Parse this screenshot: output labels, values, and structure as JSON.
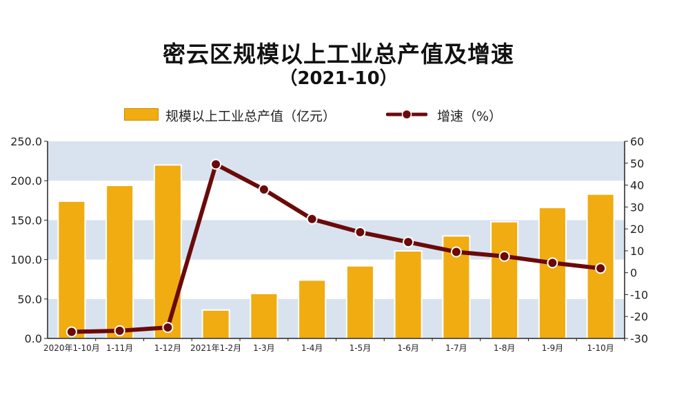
{
  "title": "密云区规模以上工业总产值及增速",
  "subtitle": "（2021-10）",
  "legend": {
    "bar_label": "规模以上工业总产值（亿元）",
    "line_label": "增速（%）"
  },
  "colors": {
    "bar": "#f0ac10",
    "bar_stroke": "#d79600",
    "line": "#6b0a0a",
    "band": "#d8e3ef"
  },
  "chart_data": {
    "type": "bar",
    "title": "密云区规模以上工业总产值及增速",
    "categories": [
      "2020年1-10月",
      "1-11月",
      "1-12月",
      "2021年1-2月",
      "1-3月",
      "1-4月",
      "1-5月",
      "1-6月",
      "1-7月",
      "1-8月",
      "1-9月",
      "1-10月"
    ],
    "series": [
      {
        "name": "规模以上工业总产值（亿元）",
        "type": "bar",
        "axis": "left",
        "values": [
          174,
          194,
          220,
          36,
          57,
          74,
          92,
          111,
          130,
          148,
          166,
          183
        ]
      },
      {
        "name": "增速（%）",
        "type": "line",
        "axis": "right",
        "values": [
          -27,
          -26.5,
          -25,
          49.5,
          38,
          24.5,
          18.5,
          14,
          9.5,
          7.5,
          4.5,
          2
        ]
      }
    ],
    "y_left": {
      "ylim": [
        0,
        250
      ],
      "ticks": [
        "0.0",
        "50.0",
        "100.0",
        "150.0",
        "200.0",
        "250.0"
      ]
    },
    "y_right": {
      "ylim": [
        -30,
        60
      ],
      "ticks": [
        "-30",
        "-20",
        "-10",
        "0",
        "10",
        "20",
        "30",
        "40",
        "50",
        "60"
      ]
    },
    "grid": "alternating horizontal bands",
    "legend_position": "top-center"
  }
}
